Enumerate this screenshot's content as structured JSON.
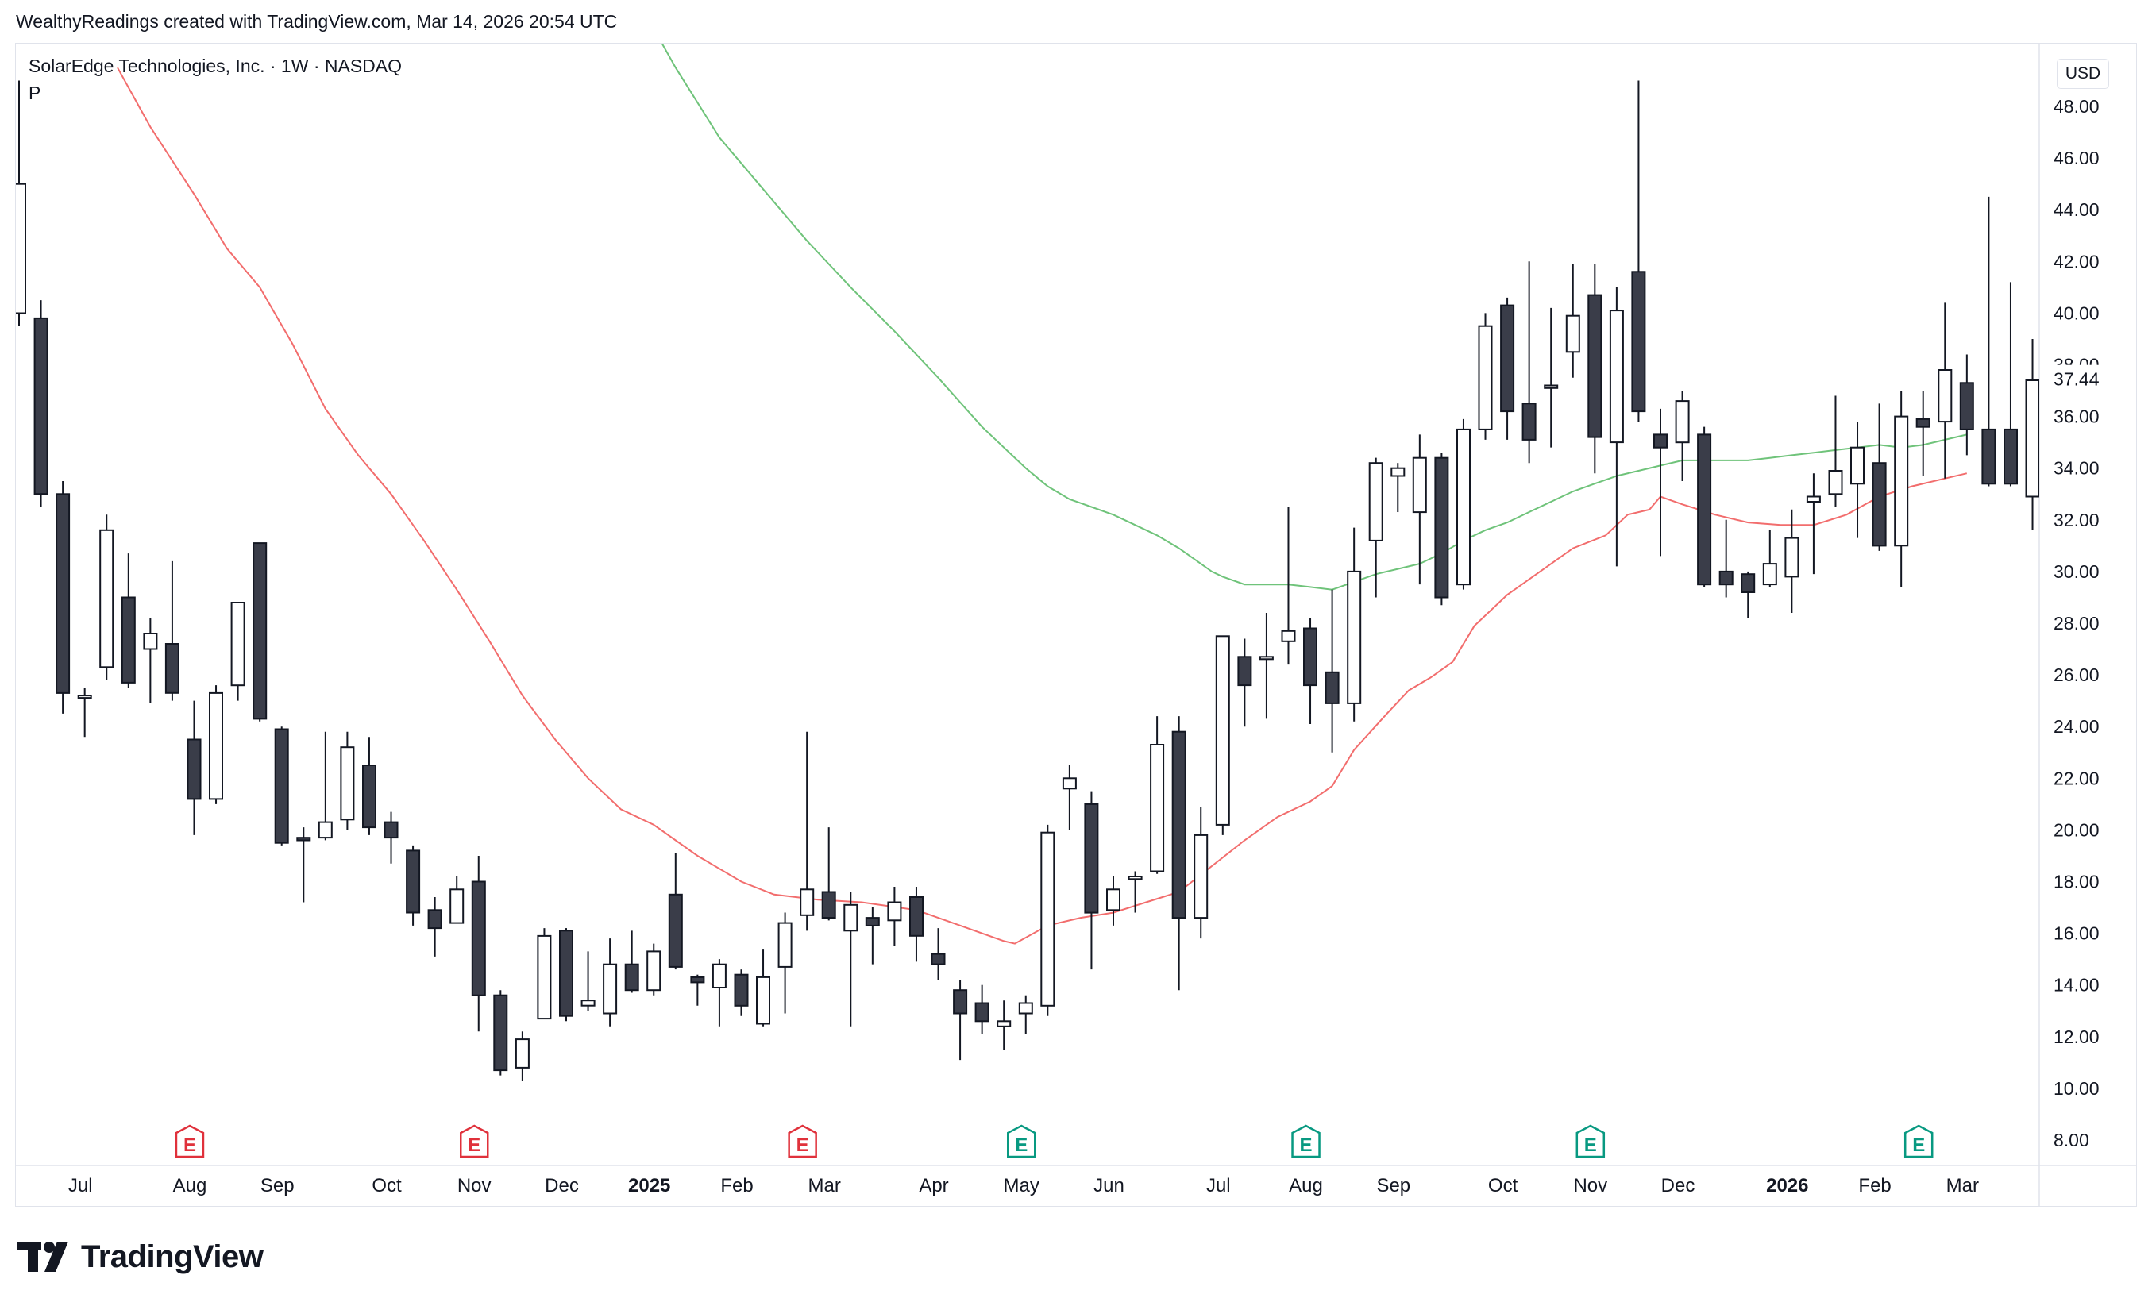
{
  "header": {
    "attribution": "WealthyReadings created with TradingView.com, Mar 14, 2026 20:54 UTC"
  },
  "symbol": {
    "title": "SolarEdge Technologies, Inc. · 1W · NASDAQ",
    "subtitle": "P"
  },
  "currency_label": "USD",
  "brand": {
    "name": "TradingView",
    "logo_icon": "tradingview-logo-icon"
  },
  "colors": {
    "bull_body": "#ffffff",
    "bear_body": "#3a3d49",
    "candle_outline": "#131722",
    "ma_fast": "#f26d6d",
    "ma_slow": "#6fc37a",
    "earnings_red": "#e0313b",
    "earnings_green": "#089981",
    "grid_border": "#e0e3eb"
  },
  "chart_data": {
    "type": "candlestick",
    "interval": "1W",
    "ylim": [
      8,
      49
    ],
    "y_ticks": [
      8,
      10,
      12,
      14,
      16,
      18,
      20,
      22,
      24,
      26,
      28,
      30,
      32,
      34,
      36,
      38,
      40,
      42,
      44,
      46,
      48
    ],
    "y_tick_labels": [
      "8.00",
      "10.00",
      "12.00",
      "14.00",
      "16.00",
      "18.00",
      "20.00",
      "22.00",
      "24.00",
      "26.00",
      "28.00",
      "30.00",
      "32.00",
      "34.00",
      "36.00",
      "38.00",
      "40.00",
      "42.00",
      "44.00",
      "46.00",
      "48.00"
    ],
    "last_price_label": "37.44",
    "last_price": 37.44,
    "x_labels": [
      {
        "label": "Jul",
        "week": 2.8,
        "bold": false
      },
      {
        "label": "Aug",
        "week": 7.8,
        "bold": false
      },
      {
        "label": "Sep",
        "week": 11.8,
        "bold": false
      },
      {
        "label": "Oct",
        "week": 16.8,
        "bold": false
      },
      {
        "label": "Nov",
        "week": 20.8,
        "bold": false
      },
      {
        "label": "Dec",
        "week": 24.8,
        "bold": false
      },
      {
        "label": "2025",
        "week": 28.8,
        "bold": true
      },
      {
        "label": "Feb",
        "week": 32.8,
        "bold": false
      },
      {
        "label": "Mar",
        "week": 36.8,
        "bold": false
      },
      {
        "label": "Apr",
        "week": 41.8,
        "bold": false
      },
      {
        "label": "May",
        "week": 45.8,
        "bold": false
      },
      {
        "label": "Jun",
        "week": 49.8,
        "bold": false
      },
      {
        "label": "Jul",
        "week": 54.8,
        "bold": false
      },
      {
        "label": "Aug",
        "week": 58.8,
        "bold": false
      },
      {
        "label": "Sep",
        "week": 62.8,
        "bold": false
      },
      {
        "label": "Oct",
        "week": 67.8,
        "bold": false
      },
      {
        "label": "Nov",
        "week": 71.8,
        "bold": false
      },
      {
        "label": "Dec",
        "week": 75.8,
        "bold": false
      },
      {
        "label": "2026",
        "week": 80.8,
        "bold": true
      },
      {
        "label": "Feb",
        "week": 84.8,
        "bold": false
      },
      {
        "label": "Mar",
        "week": 88.8,
        "bold": false
      }
    ],
    "candles": [
      {
        "o": 40.0,
        "h": 49.0,
        "l": 39.5,
        "c": 45.0
      },
      {
        "o": 39.8,
        "h": 40.5,
        "l": 32.5,
        "c": 33.0
      },
      {
        "o": 33.0,
        "h": 33.5,
        "l": 24.5,
        "c": 25.3
      },
      {
        "o": 25.2,
        "h": 25.5,
        "l": 23.6,
        "c": 25.2
      },
      {
        "o": 26.3,
        "h": 32.2,
        "l": 25.8,
        "c": 31.6
      },
      {
        "o": 29.0,
        "h": 30.7,
        "l": 25.5,
        "c": 25.7
      },
      {
        "o": 27.0,
        "h": 28.2,
        "l": 24.9,
        "c": 27.6
      },
      {
        "o": 27.2,
        "h": 30.4,
        "l": 25.0,
        "c": 25.3
      },
      {
        "o": 23.5,
        "h": 25.0,
        "l": 19.8,
        "c": 21.2
      },
      {
        "o": 21.2,
        "h": 25.6,
        "l": 21.0,
        "c": 25.3
      },
      {
        "o": 25.6,
        "h": 28.8,
        "l": 25.0,
        "c": 28.8
      },
      {
        "o": 31.1,
        "h": 31.1,
        "l": 24.2,
        "c": 24.3
      },
      {
        "o": 23.9,
        "h": 24.0,
        "l": 19.4,
        "c": 19.5
      },
      {
        "o": 19.7,
        "h": 20.1,
        "l": 17.2,
        "c": 19.6
      },
      {
        "o": 19.7,
        "h": 23.8,
        "l": 19.6,
        "c": 20.3
      },
      {
        "o": 20.4,
        "h": 23.8,
        "l": 20.0,
        "c": 23.2
      },
      {
        "o": 22.5,
        "h": 23.6,
        "l": 19.8,
        "c": 20.1
      },
      {
        "o": 20.3,
        "h": 20.7,
        "l": 18.7,
        "c": 19.7
      },
      {
        "o": 19.2,
        "h": 19.4,
        "l": 16.3,
        "c": 16.8
      },
      {
        "o": 16.9,
        "h": 17.4,
        "l": 15.1,
        "c": 16.2
      },
      {
        "o": 16.4,
        "h": 18.2,
        "l": 16.4,
        "c": 17.7
      },
      {
        "o": 18.0,
        "h": 19.0,
        "l": 12.2,
        "c": 13.6
      },
      {
        "o": 13.6,
        "h": 13.8,
        "l": 10.5,
        "c": 10.7
      },
      {
        "o": 10.8,
        "h": 12.2,
        "l": 10.3,
        "c": 11.9
      },
      {
        "o": 12.7,
        "h": 16.2,
        "l": 12.7,
        "c": 15.9
      },
      {
        "o": 16.1,
        "h": 16.2,
        "l": 12.6,
        "c": 12.8
      },
      {
        "o": 13.2,
        "h": 15.3,
        "l": 13.0,
        "c": 13.4
      },
      {
        "o": 12.9,
        "h": 15.8,
        "l": 12.4,
        "c": 14.8
      },
      {
        "o": 14.8,
        "h": 16.1,
        "l": 13.7,
        "c": 13.8
      },
      {
        "o": 13.8,
        "h": 15.6,
        "l": 13.6,
        "c": 15.3
      },
      {
        "o": 17.5,
        "h": 19.1,
        "l": 14.6,
        "c": 14.7
      },
      {
        "o": 14.3,
        "h": 14.4,
        "l": 13.2,
        "c": 14.1
      },
      {
        "o": 13.9,
        "h": 15.0,
        "l": 12.4,
        "c": 14.8
      },
      {
        "o": 14.4,
        "h": 14.6,
        "l": 12.8,
        "c": 13.2
      },
      {
        "o": 12.5,
        "h": 15.4,
        "l": 12.4,
        "c": 14.3
      },
      {
        "o": 14.7,
        "h": 16.8,
        "l": 12.9,
        "c": 16.4
      },
      {
        "o": 16.7,
        "h": 23.8,
        "l": 16.1,
        "c": 17.7
      },
      {
        "o": 17.6,
        "h": 20.1,
        "l": 16.5,
        "c": 16.6
      },
      {
        "o": 16.1,
        "h": 17.6,
        "l": 12.4,
        "c": 17.1
      },
      {
        "o": 16.6,
        "h": 17.0,
        "l": 14.8,
        "c": 16.3
      },
      {
        "o": 16.5,
        "h": 17.8,
        "l": 15.5,
        "c": 17.2
      },
      {
        "o": 17.4,
        "h": 17.8,
        "l": 14.9,
        "c": 15.9
      },
      {
        "o": 15.2,
        "h": 16.2,
        "l": 14.2,
        "c": 14.8
      },
      {
        "o": 13.8,
        "h": 14.2,
        "l": 11.1,
        "c": 12.9
      },
      {
        "o": 13.3,
        "h": 14.0,
        "l": 12.1,
        "c": 12.6
      },
      {
        "o": 12.4,
        "h": 13.4,
        "l": 11.5,
        "c": 12.6
      },
      {
        "o": 12.9,
        "h": 13.6,
        "l": 12.1,
        "c": 13.3
      },
      {
        "o": 13.2,
        "h": 20.2,
        "l": 12.8,
        "c": 19.9
      },
      {
        "o": 21.6,
        "h": 22.5,
        "l": 20.0,
        "c": 22.0
      },
      {
        "o": 21.0,
        "h": 21.5,
        "l": 14.6,
        "c": 16.8
      },
      {
        "o": 16.9,
        "h": 18.2,
        "l": 16.3,
        "c": 17.7
      },
      {
        "o": 18.1,
        "h": 18.4,
        "l": 16.8,
        "c": 18.2
      },
      {
        "o": 18.4,
        "h": 24.4,
        "l": 18.3,
        "c": 23.3
      },
      {
        "o": 23.8,
        "h": 24.4,
        "l": 13.8,
        "c": 16.6
      },
      {
        "o": 16.6,
        "h": 20.9,
        "l": 15.8,
        "c": 19.8
      },
      {
        "o": 20.2,
        "h": 27.5,
        "l": 19.8,
        "c": 27.5
      },
      {
        "o": 26.7,
        "h": 27.4,
        "l": 24.0,
        "c": 25.6
      },
      {
        "o": 26.7,
        "h": 28.4,
        "l": 24.3,
        "c": 26.7
      },
      {
        "o": 27.3,
        "h": 32.5,
        "l": 26.4,
        "c": 27.7
      },
      {
        "o": 27.8,
        "h": 28.2,
        "l": 24.1,
        "c": 25.6
      },
      {
        "o": 26.1,
        "h": 29.3,
        "l": 23.0,
        "c": 24.9
      },
      {
        "o": 24.9,
        "h": 31.7,
        "l": 24.2,
        "c": 30.0
      },
      {
        "o": 31.2,
        "h": 34.4,
        "l": 29.0,
        "c": 34.2
      },
      {
        "o": 33.7,
        "h": 34.2,
        "l": 32.3,
        "c": 34.0
      },
      {
        "o": 32.3,
        "h": 35.3,
        "l": 29.5,
        "c": 34.4
      },
      {
        "o": 34.4,
        "h": 34.6,
        "l": 28.7,
        "c": 29.0
      },
      {
        "o": 29.5,
        "h": 35.9,
        "l": 29.3,
        "c": 35.5
      },
      {
        "o": 35.5,
        "h": 40.0,
        "l": 35.1,
        "c": 39.5
      },
      {
        "o": 40.3,
        "h": 40.6,
        "l": 35.1,
        "c": 36.2
      },
      {
        "o": 36.5,
        "h": 42.0,
        "l": 34.2,
        "c": 35.1
      },
      {
        "o": 37.1,
        "h": 40.2,
        "l": 34.8,
        "c": 37.2
      },
      {
        "o": 38.5,
        "h": 41.9,
        "l": 37.5,
        "c": 39.9
      },
      {
        "o": 40.7,
        "h": 41.9,
        "l": 33.8,
        "c": 35.2
      },
      {
        "o": 35.0,
        "h": 41.0,
        "l": 30.2,
        "c": 40.1
      },
      {
        "o": 41.6,
        "h": 49.0,
        "l": 35.8,
        "c": 36.2
      },
      {
        "o": 35.3,
        "h": 36.3,
        "l": 30.6,
        "c": 34.8
      },
      {
        "o": 35.0,
        "h": 37.0,
        "l": 33.5,
        "c": 36.6
      },
      {
        "o": 35.3,
        "h": 35.6,
        "l": 29.4,
        "c": 29.5
      },
      {
        "o": 30.0,
        "h": 32.0,
        "l": 29.0,
        "c": 29.5
      },
      {
        "o": 29.9,
        "h": 30.0,
        "l": 28.2,
        "c": 29.2
      },
      {
        "o": 29.5,
        "h": 31.6,
        "l": 29.4,
        "c": 30.3
      },
      {
        "o": 29.8,
        "h": 32.4,
        "l": 28.4,
        "c": 31.3
      },
      {
        "o": 32.7,
        "h": 33.8,
        "l": 29.9,
        "c": 32.9
      },
      {
        "o": 33.0,
        "h": 36.8,
        "l": 32.5,
        "c": 33.9
      },
      {
        "o": 33.4,
        "h": 35.8,
        "l": 31.3,
        "c": 34.8
      },
      {
        "o": 34.2,
        "h": 36.5,
        "l": 30.8,
        "c": 31.0
      },
      {
        "o": 31.0,
        "h": 37.0,
        "l": 29.4,
        "c": 36.0
      },
      {
        "o": 35.9,
        "h": 37.0,
        "l": 33.7,
        "c": 35.6
      },
      {
        "o": 35.8,
        "h": 40.4,
        "l": 33.6,
        "c": 37.8
      },
      {
        "o": 37.3,
        "h": 38.4,
        "l": 34.5,
        "c": 35.5
      },
      {
        "o": 35.5,
        "h": 44.5,
        "l": 33.3,
        "c": 33.4
      },
      {
        "o": 35.5,
        "h": 41.2,
        "l": 33.3,
        "c": 33.4
      },
      {
        "o": 32.9,
        "h": 39.0,
        "l": 31.6,
        "c": 37.4
      }
    ],
    "moving_averages": [
      {
        "color_key": "ma_fast",
        "points": [
          [
            4.5,
            49.5
          ],
          [
            6,
            47.2
          ],
          [
            8,
            44.6
          ],
          [
            9.5,
            42.5
          ],
          [
            11,
            41.0
          ],
          [
            12.5,
            38.8
          ],
          [
            14,
            36.3
          ],
          [
            15.5,
            34.5
          ],
          [
            17,
            33.0
          ],
          [
            18.5,
            31.2
          ],
          [
            20,
            29.3
          ],
          [
            21.5,
            27.3
          ],
          [
            23,
            25.2
          ],
          [
            24.5,
            23.5
          ],
          [
            26,
            22.0
          ],
          [
            27.5,
            20.8
          ],
          [
            29,
            20.2
          ],
          [
            31,
            19.0
          ],
          [
            33,
            18.0
          ],
          [
            34.5,
            17.5
          ],
          [
            36.5,
            17.3
          ],
          [
            38.5,
            17.2
          ],
          [
            41,
            16.9
          ],
          [
            43,
            16.3
          ],
          [
            45,
            15.7
          ],
          [
            45.5,
            15.6
          ],
          [
            47,
            16.3
          ],
          [
            48.5,
            16.6
          ],
          [
            50,
            16.8
          ],
          [
            51.5,
            17.2
          ],
          [
            53,
            17.6
          ],
          [
            54.5,
            18.6
          ],
          [
            56,
            19.6
          ],
          [
            57.5,
            20.5
          ],
          [
            59,
            21.1
          ],
          [
            60,
            21.7
          ],
          [
            61,
            23.1
          ],
          [
            62.5,
            24.5
          ],
          [
            63.5,
            25.4
          ],
          [
            64.5,
            25.9
          ],
          [
            65.5,
            26.5
          ],
          [
            66.5,
            27.9
          ],
          [
            68,
            29.1
          ],
          [
            69.5,
            30.0
          ],
          [
            71,
            30.9
          ],
          [
            72.5,
            31.4
          ],
          [
            73.5,
            32.2
          ],
          [
            74.5,
            32.4
          ],
          [
            75,
            32.9
          ],
          [
            76,
            32.6
          ],
          [
            77.5,
            32.2
          ],
          [
            79,
            31.9
          ],
          [
            80.5,
            31.8
          ],
          [
            82,
            31.8
          ],
          [
            83.5,
            32.2
          ],
          [
            85,
            32.9
          ],
          [
            86.5,
            33.3
          ],
          [
            88,
            33.6
          ],
          [
            89,
            33.8
          ]
        ]
      },
      {
        "color_key": "ma_slow",
        "points": [
          [
            26,
            56.0
          ],
          [
            28,
            52.5
          ],
          [
            30,
            49.5
          ],
          [
            32,
            46.8
          ],
          [
            34,
            44.8
          ],
          [
            36,
            42.8
          ],
          [
            38,
            41.0
          ],
          [
            40,
            39.3
          ],
          [
            42,
            37.5
          ],
          [
            44,
            35.6
          ],
          [
            45,
            34.8
          ],
          [
            46,
            34.0
          ],
          [
            47,
            33.3
          ],
          [
            48,
            32.8
          ],
          [
            49,
            32.5
          ],
          [
            50,
            32.2
          ],
          [
            51,
            31.8
          ],
          [
            52,
            31.4
          ],
          [
            53,
            30.9
          ],
          [
            54,
            30.3
          ],
          [
            54.5,
            30.0
          ],
          [
            55,
            29.8
          ],
          [
            56,
            29.5
          ],
          [
            57,
            29.5
          ],
          [
            58,
            29.5
          ],
          [
            59,
            29.4
          ],
          [
            60,
            29.3
          ],
          [
            61,
            29.6
          ],
          [
            62,
            29.9
          ],
          [
            63,
            30.1
          ],
          [
            64,
            30.3
          ],
          [
            65,
            30.7
          ],
          [
            66,
            31.2
          ],
          [
            67,
            31.6
          ],
          [
            68,
            31.9
          ],
          [
            69,
            32.3
          ],
          [
            70,
            32.7
          ],
          [
            71,
            33.1
          ],
          [
            72,
            33.4
          ],
          [
            73,
            33.7
          ],
          [
            74,
            33.9
          ],
          [
            75,
            34.1
          ],
          [
            76,
            34.3
          ],
          [
            77,
            34.3
          ],
          [
            78,
            34.3
          ],
          [
            79,
            34.3
          ],
          [
            80,
            34.4
          ],
          [
            81,
            34.5
          ],
          [
            82,
            34.6
          ],
          [
            83,
            34.7
          ],
          [
            84,
            34.8
          ],
          [
            85,
            34.9
          ],
          [
            86,
            34.8
          ],
          [
            87,
            34.9
          ],
          [
            88,
            35.1
          ],
          [
            89,
            35.3
          ]
        ]
      }
    ],
    "earnings_markers": [
      {
        "week": 7.8,
        "label": "E",
        "color_key": "earnings_red"
      },
      {
        "week": 20.8,
        "label": "E",
        "color_key": "earnings_red"
      },
      {
        "week": 35.8,
        "label": "E",
        "color_key": "earnings_red"
      },
      {
        "week": 45.8,
        "label": "E",
        "color_key": "earnings_green"
      },
      {
        "week": 58.8,
        "label": "E",
        "color_key": "earnings_green"
      },
      {
        "week": 71.8,
        "label": "E",
        "color_key": "earnings_green"
      },
      {
        "week": 86.8,
        "label": "E",
        "color_key": "earnings_green"
      }
    ]
  }
}
